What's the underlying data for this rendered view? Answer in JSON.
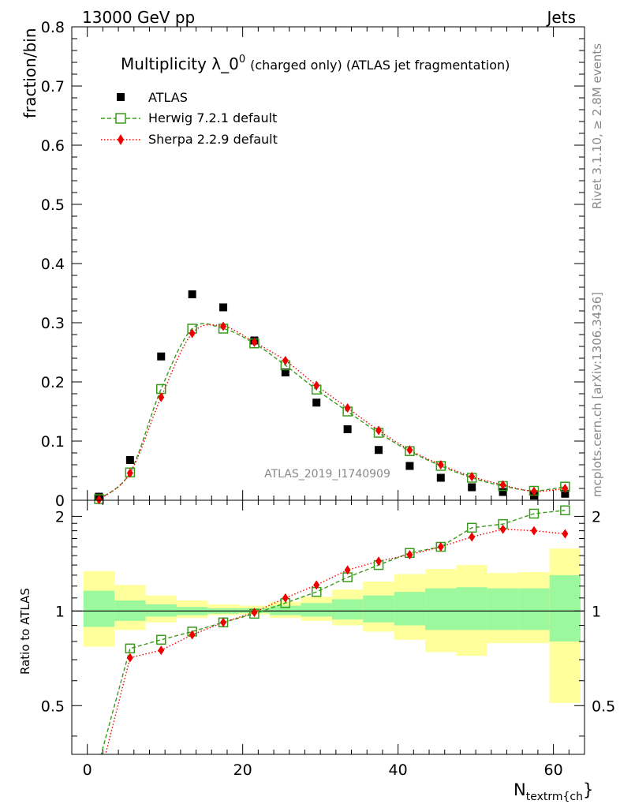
{
  "header": {
    "left": "13000 GeV pp",
    "right": "Jets"
  },
  "side_labels": {
    "rivet": "Rivet 3.1.10, ≥ 2.8M events",
    "mcplots": "mcplots.cern.ch [arXiv:1306.3436]"
  },
  "watermark": "ATLAS_2019_I1740909",
  "colors": {
    "atlas": "#000000",
    "herwig": "#3a9a1a",
    "sherpa": "#ee0000",
    "band_inner": "#9cf89c",
    "band_outer": "#ffff9c"
  },
  "chart_data": [
    {
      "type": "scatter",
      "title_main": "Multiplicity λ_0",
      "title_sup": "0",
      "title_sub": "(charged only) (ATLAS jet fragmentation)",
      "ylabel": "fraction/bin",
      "xlabel": "",
      "xlim": [
        -2,
        64
      ],
      "ylim": [
        0,
        0.8
      ],
      "y_ticks": [
        "0",
        "0.1",
        "0.2",
        "0.3",
        "0.4",
        "0.5",
        "0.6",
        "0.7",
        "0.8"
      ],
      "x": [
        1.5,
        5.5,
        9.5,
        13.5,
        17.5,
        21.5,
        25.5,
        29.5,
        33.5,
        37.5,
        41.5,
        45.5,
        49.5,
        53.5,
        57.5,
        61.5
      ],
      "series": [
        {
          "name": "ATLAS",
          "marker": "square-filled",
          "values": [
            0.006,
            0.068,
            0.243,
            0.348,
            0.326,
            0.27,
            0.216,
            0.165,
            0.12,
            0.085,
            0.058,
            0.038,
            0.022,
            0.014,
            0.008,
            0.011
          ]
        },
        {
          "name": "Herwig 7.2.1 default",
          "marker": "square-open",
          "line": "dashed",
          "values": [
            0.002,
            0.047,
            0.188,
            0.29,
            0.29,
            0.265,
            0.228,
            0.187,
            0.15,
            0.114,
            0.083,
            0.058,
            0.038,
            0.024,
            0.016,
            0.023
          ]
        },
        {
          "name": "Sherpa 2.2.9 default",
          "marker": "diamond-filled",
          "line": "dotted",
          "values": [
            0.001,
            0.046,
            0.174,
            0.282,
            0.294,
            0.267,
            0.236,
            0.194,
            0.156,
            0.118,
            0.085,
            0.06,
            0.04,
            0.026,
            0.015,
            0.02
          ]
        }
      ]
    },
    {
      "type": "scatter",
      "ylabel": "Ratio to ATLAS",
      "xlabel": "N_{textrm{ch}}",
      "xlabel_main": "N",
      "xlabel_sub": "textrm{ch",
      "xlabel_end": "}",
      "xlim": [
        -2,
        64
      ],
      "ylim": [
        0.35,
        2.25
      ],
      "x_ticks": [
        "0",
        "20",
        "40",
        "60"
      ],
      "y_ticks": [
        "0.5",
        "1",
        "2"
      ],
      "bin_edges": [
        -0.5,
        3.5,
        7.5,
        11.5,
        15.5,
        19.5,
        23.5,
        27.5,
        31.5,
        35.5,
        39.5,
        43.5,
        47.5,
        51.5,
        55.5,
        59.5,
        63.5
      ],
      "band_inner": {
        "lo": [
          0.89,
          0.93,
          0.96,
          0.97,
          0.98,
          0.985,
          0.97,
          0.96,
          0.94,
          0.92,
          0.9,
          0.87,
          0.87,
          0.87,
          0.87,
          0.8
        ],
        "hi": [
          1.16,
          1.08,
          1.05,
          1.03,
          1.02,
          1.02,
          1.04,
          1.06,
          1.09,
          1.12,
          1.15,
          1.18,
          1.19,
          1.18,
          1.18,
          1.3
        ]
      },
      "band_outer": {
        "lo": [
          0.77,
          0.87,
          0.92,
          0.95,
          0.97,
          0.975,
          0.95,
          0.93,
          0.9,
          0.86,
          0.81,
          0.74,
          0.72,
          0.79,
          0.79,
          0.51
        ],
        "hi": [
          1.34,
          1.21,
          1.12,
          1.08,
          1.05,
          1.04,
          1.07,
          1.11,
          1.17,
          1.24,
          1.31,
          1.36,
          1.4,
          1.32,
          1.33,
          1.58
        ]
      },
      "series": [
        {
          "name": "Herwig 7.2.1 default",
          "values": [
            0.33,
            0.76,
            0.81,
            0.86,
            0.92,
            0.98,
            1.06,
            1.15,
            1.28,
            1.4,
            1.53,
            1.6,
            1.84,
            1.89,
            2.04,
            2.09
          ]
        },
        {
          "name": "Sherpa 2.2.9 default",
          "values": [
            0.29,
            0.71,
            0.75,
            0.84,
            0.92,
            0.99,
            1.1,
            1.21,
            1.35,
            1.44,
            1.51,
            1.6,
            1.72,
            1.82,
            1.8,
            1.76
          ]
        }
      ]
    }
  ]
}
